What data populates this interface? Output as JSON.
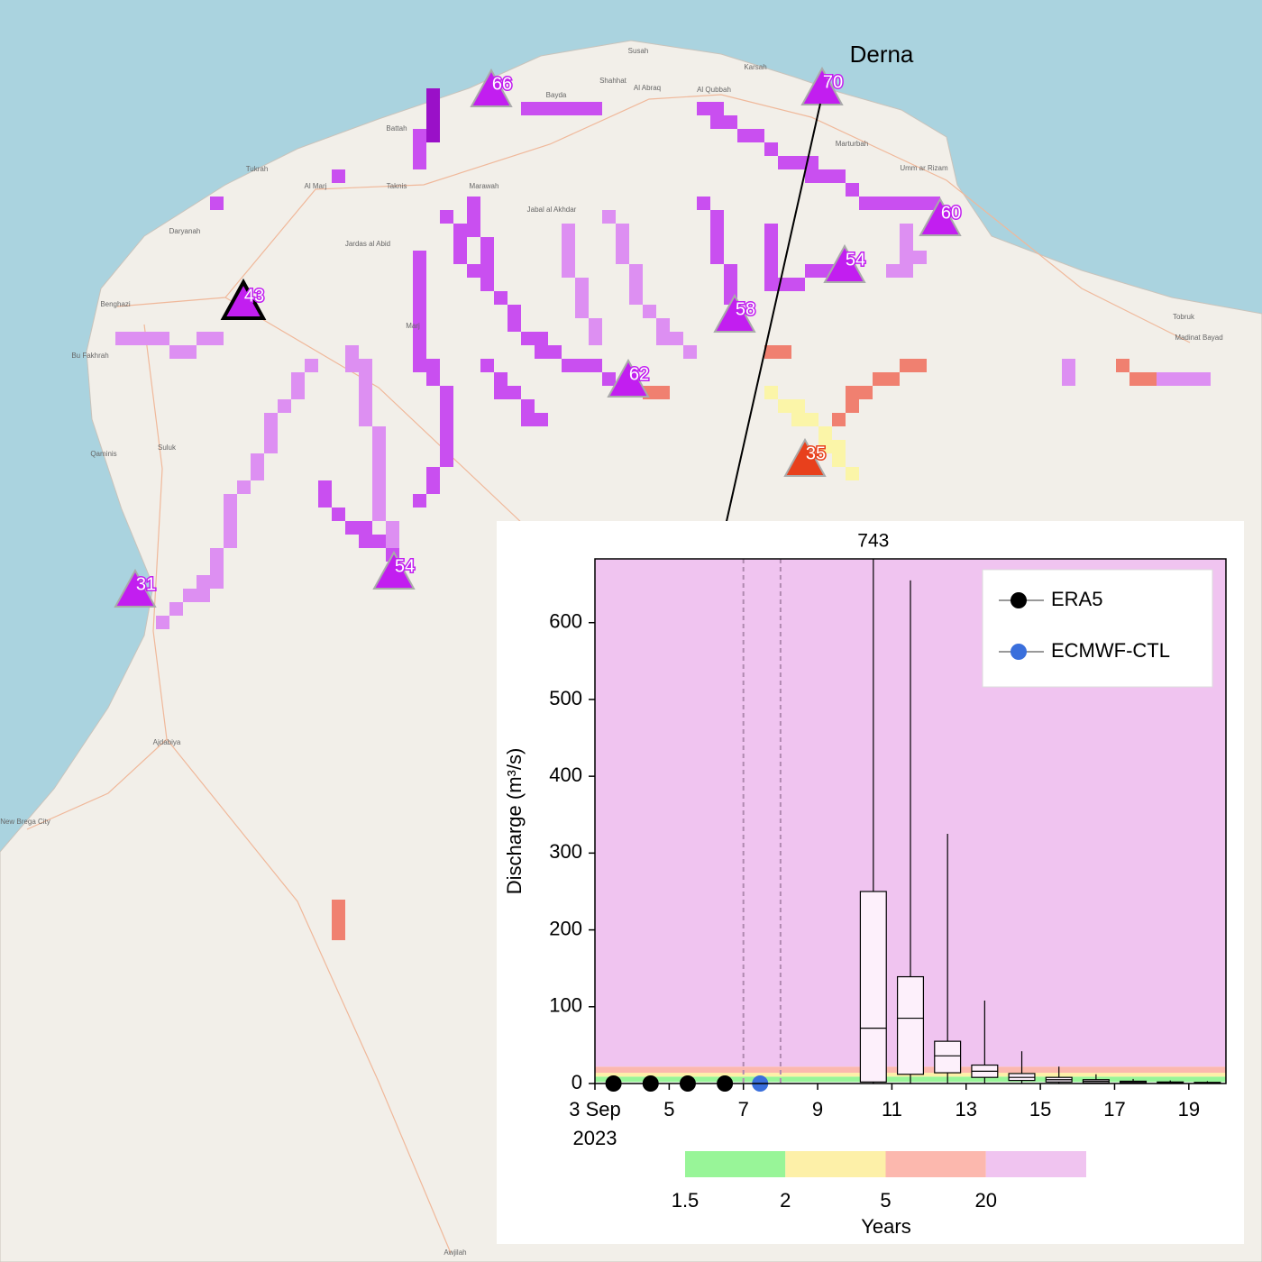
{
  "map": {
    "annotation": "Derna",
    "places": [
      "Susah",
      "Karsah",
      "Shahhat",
      "Al Abraq",
      "Al Qubbah",
      "Bayda",
      "Battah",
      "Marawah",
      "Jabal al Akhdar",
      "Al Marj",
      "Taknis",
      "Tukrah",
      "Daryanah",
      "Jardas al Abid",
      "Benghazi",
      "Marj",
      "Bu Fakhrah",
      "Marturbah",
      "Umm ar Rizam",
      "Tobruk",
      "Madinat Bayad",
      "Qaminis",
      "Suluk",
      "Ajdabiya",
      "New Brega City",
      "Awjilah"
    ],
    "stations": [
      {
        "value": 66,
        "color": "#c21ef0"
      },
      {
        "value": 70,
        "color": "#c21ef0"
      },
      {
        "value": 60,
        "color": "#c21ef0"
      },
      {
        "value": 54,
        "color": "#c21ef0"
      },
      {
        "value": 43,
        "color": "#c21ef0"
      },
      {
        "value": 58,
        "color": "#c21ef0"
      },
      {
        "value": 62,
        "color": "#c21ef0"
      },
      {
        "value": 35,
        "color": "#e8401c"
      },
      {
        "value": 31,
        "color": "#c21ef0"
      },
      {
        "value": 54,
        "color": "#c21ef0"
      }
    ]
  },
  "chart_data": {
    "type": "box",
    "ylabel": "Discharge (m³/s)",
    "xlim": [
      3,
      20
    ],
    "ylim": [
      0,
      683
    ],
    "xticks": [
      {
        "value": 3,
        "label": "3 Sep"
      },
      5,
      7,
      9,
      11,
      13,
      15,
      17,
      19
    ],
    "x_year": "2023",
    "yticks": [
      0,
      100,
      200,
      300,
      400,
      500,
      600
    ],
    "vlines": [
      7,
      8
    ],
    "box_color": "#fdf0fb",
    "boxes": [
      {
        "x": 10.5,
        "whislo": 0,
        "q1": 2,
        "med": 72,
        "q3": 250,
        "whishi": 743
      },
      {
        "x": 11.5,
        "whislo": 0,
        "q1": 12,
        "med": 85,
        "q3": 139,
        "whishi": 655
      },
      {
        "x": 12.5,
        "whislo": 0,
        "q1": 14,
        "med": 36,
        "q3": 55,
        "whishi": 325
      },
      {
        "x": 13.5,
        "whislo": 0,
        "q1": 8,
        "med": 16,
        "q3": 24,
        "whishi": 108
      },
      {
        "x": 14.5,
        "whislo": 0,
        "q1": 4,
        "med": 8,
        "q3": 13,
        "whishi": 42
      },
      {
        "x": 15.5,
        "whislo": 0,
        "q1": 2,
        "med": 5,
        "q3": 8,
        "whishi": 22
      },
      {
        "x": 16.5,
        "whislo": 0,
        "q1": 1,
        "med": 3,
        "q3": 5,
        "whishi": 12
      },
      {
        "x": 17.5,
        "whislo": 0,
        "q1": 0.5,
        "med": 2,
        "q3": 3,
        "whishi": 6
      },
      {
        "x": 18.5,
        "whislo": 0,
        "q1": 0.3,
        "med": 1,
        "q3": 2,
        "whishi": 4
      },
      {
        "x": 19.5,
        "whislo": 0,
        "q1": 0.2,
        "med": 1,
        "q3": 1.5,
        "whishi": 3
      }
    ],
    "series": [
      {
        "name": "ERA5",
        "color": "#000000",
        "x": [
          3.5,
          4.5,
          5.5,
          6.5
        ],
        "values": [
          0,
          0,
          0,
          0
        ]
      },
      {
        "name": "ECMWF-CTL",
        "color": "#3a6fdc",
        "x": [
          7.45
        ],
        "values": [
          0
        ]
      }
    ],
    "return_periods": {
      "title": "Years",
      "levels": [
        1.5,
        2,
        5,
        20
      ],
      "colors": [
        "#98f598",
        "#fdf0a8",
        "#fcb8ae",
        "#f0c4f0"
      ],
      "thresholds": [
        2,
        9,
        14,
        22
      ]
    }
  }
}
